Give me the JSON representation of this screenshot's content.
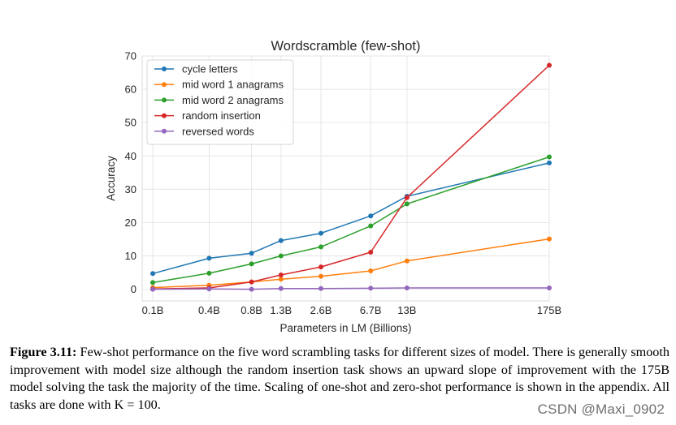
{
  "chart_data": {
    "type": "line",
    "title": "Wordscramble (few-shot)",
    "xlabel": "Parameters in LM (Billions)",
    "ylabel": "Accuracy",
    "ylim": [
      -3.5,
      70
    ],
    "yticks": [
      0,
      10,
      20,
      30,
      40,
      50,
      60,
      70
    ],
    "x_scale": "log",
    "categories": [
      "0.1B",
      "0.4B",
      "0.8B",
      "1.3B",
      "2.6B",
      "6.7B",
      "13B",
      "175B"
    ],
    "x": [
      0.125,
      0.35,
      0.76,
      1.3,
      2.7,
      6.7,
      13,
      175
    ],
    "grid": true,
    "legend_position": "top-left",
    "series": [
      {
        "name": "cycle letters",
        "color": "#1f77b4",
        "values": [
          4.7,
          9.3,
          10.8,
          14.6,
          16.8,
          22.0,
          27.9,
          37.9
        ]
      },
      {
        "name": "mid word 1 anagrams",
        "color": "#ff7f0e",
        "values": [
          0.5,
          1.2,
          2.2,
          3.0,
          3.9,
          5.5,
          8.5,
          15.1
        ]
      },
      {
        "name": "mid word 2 anagrams",
        "color": "#2ca02c",
        "values": [
          2.0,
          4.8,
          7.6,
          10.0,
          12.7,
          19.0,
          25.6,
          39.7
        ]
      },
      {
        "name": "random insertion",
        "color": "#d62728",
        "values": [
          0.1,
          0.4,
          2.2,
          4.3,
          6.7,
          11.1,
          27.5,
          67.2
        ]
      },
      {
        "name": "reversed words",
        "color": "#9467bd",
        "values": [
          0.0,
          0.1,
          0.0,
          0.2,
          0.2,
          0.3,
          0.4,
          0.4
        ]
      }
    ]
  },
  "caption": {
    "label": "Figure 3.11:",
    "text": " Few-shot performance on the five word scrambling tasks for different sizes of model. There is generally smooth improvement with model size although the random insertion task shows an upward slope of improvement with the 175B model solving the task the majority of the time. Scaling of one-shot and zero-shot performance is shown in the appendix. All tasks are done with K = 100."
  },
  "watermark": "CSDN @Maxi_0902"
}
